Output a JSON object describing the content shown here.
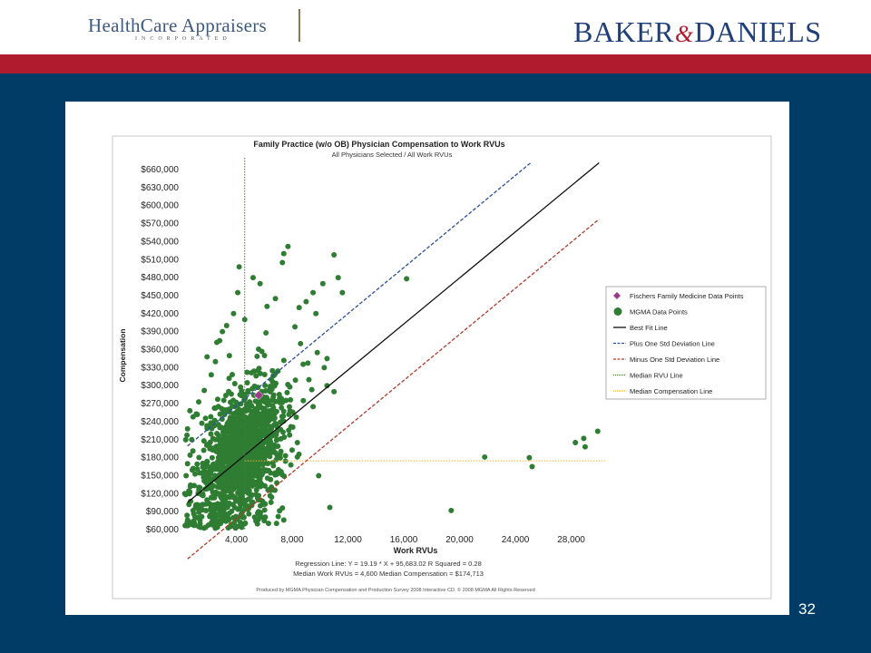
{
  "header": {
    "left_logo": {
      "name": "HealthCare Appraisers",
      "subtitle": "INCORPORATED"
    },
    "right_logo": {
      "part1": "BAKER",
      "ampersand": "&",
      "part2": "DANIELS"
    }
  },
  "slide_number": "32",
  "colors": {
    "background": "#003c66",
    "red_band": "#b01c2e",
    "points": "#2e7d32",
    "highlight": "#9b3b8a",
    "best_fit": "#111111",
    "plus_std": "#2b4fa0",
    "minus_std": "#b23a2a",
    "median_rvu": "#4a7a3a",
    "median_comp": "#f0b030"
  },
  "chart_data": {
    "type": "scatter",
    "title": "Family Practice (w/o OB) Physician Compensation to Work RVUs",
    "subtitle": "All Physicians Selected / All Work RVUs",
    "xlabel": "Work RVUs",
    "ylabel": "Compensation",
    "xlim": [
      0,
      30500
    ],
    "ylim": [
      60000,
      660000
    ],
    "x_ticks": [
      "4,000",
      "8,000",
      "12,000",
      "16,000",
      "20,000",
      "24,000",
      "28,000"
    ],
    "x_tick_values": [
      4000,
      8000,
      12000,
      16000,
      20000,
      24000,
      28000
    ],
    "y_ticks": [
      "$60,000",
      "$90,000",
      "$120,000",
      "$150,000",
      "$180,000",
      "$210,000",
      "$240,000",
      "$270,000",
      "$300,000",
      "$330,000",
      "$360,000",
      "$390,000",
      "$420,000",
      "$450,000",
      "$480,000",
      "$510,000",
      "$540,000",
      "$570,000",
      "$600,000",
      "$630,000",
      "$660,000"
    ],
    "y_tick_values": [
      60000,
      90000,
      120000,
      150000,
      180000,
      210000,
      240000,
      270000,
      300000,
      330000,
      360000,
      390000,
      420000,
      450000,
      480000,
      510000,
      540000,
      570000,
      600000,
      630000,
      660000
    ],
    "legend": [
      {
        "label": "Fischers Family Medicine Data Points",
        "symbol": "diamond",
        "color": "#9b3b8a"
      },
      {
        "label": "MGMA Data Points",
        "symbol": "circle",
        "color": "#2e7d32"
      },
      {
        "label": "Best Fit Line",
        "symbol": "solid",
        "color": "#111111"
      },
      {
        "label": "Plus One Std Deviation Line",
        "symbol": "dashed",
        "color": "#2b4fa0"
      },
      {
        "label": "Minus One Std Deviation Line",
        "symbol": "dashed",
        "color": "#b23a2a"
      },
      {
        "label": "Median RVU Line",
        "symbol": "dotted",
        "color": "#4a7a3a"
      },
      {
        "label": "Median Compensation Line",
        "symbol": "dotted",
        "color": "#f0b030"
      }
    ],
    "legend_position": "right",
    "lines": {
      "regression": {
        "slope": 19.19,
        "intercept": 95683.02
      },
      "std_offset": 94000,
      "median_rvu": 4600,
      "median_compensation": 174713
    },
    "highlight_point": {
      "x": 5600,
      "y": 284000
    },
    "cluster": {
      "x_center": 4300,
      "x_spread": 1500,
      "y_center": 180000,
      "y_spread": 55000,
      "count": 1400,
      "slope": 16
    },
    "series": [
      {
        "name": "MGMA Data Points",
        "points": [
          [
            4200,
            498000
          ],
          [
            5200,
            480000
          ],
          [
            5700,
            470000
          ],
          [
            6800,
            445000
          ],
          [
            7400,
            520000
          ],
          [
            7700,
            532000
          ],
          [
            7300,
            505000
          ],
          [
            6200,
            432000
          ],
          [
            9500,
            455000
          ],
          [
            10200,
            470000
          ],
          [
            11000,
            518000
          ],
          [
            11300,
            480000
          ],
          [
            11600,
            455000
          ],
          [
            9000,
            440000
          ],
          [
            9700,
            420000
          ],
          [
            8500,
            430000
          ],
          [
            8200,
            398000
          ],
          [
            8600,
            370000
          ],
          [
            9800,
            355000
          ],
          [
            10500,
            345000
          ],
          [
            16200,
            478000
          ],
          [
            10500,
            300000
          ],
          [
            11000,
            290000
          ],
          [
            10300,
            330000
          ],
          [
            9200,
            310000
          ],
          [
            8800,
            275000
          ],
          [
            9500,
            265000
          ],
          [
            9900,
            150000
          ],
          [
            10700,
            97000
          ],
          [
            19400,
            92000
          ],
          [
            21800,
            181000
          ],
          [
            25000,
            180000
          ],
          [
            25200,
            165000
          ],
          [
            28300,
            205000
          ],
          [
            28900,
            212000
          ],
          [
            29000,
            198000
          ],
          [
            29900,
            224000
          ],
          [
            800,
            210000
          ],
          [
            500,
            228000
          ],
          [
            900,
            248000
          ],
          [
            1200,
            252000
          ],
          [
            1300,
            273000
          ],
          [
            1700,
            292000
          ],
          [
            2200,
            318000
          ],
          [
            2500,
            340000
          ],
          [
            1900,
            348000
          ],
          [
            2800,
            375000
          ],
          [
            2600,
            372000
          ],
          [
            3000,
            390000
          ],
          [
            3300,
            400000
          ],
          [
            3800,
            420000
          ],
          [
            4600,
            410000
          ],
          [
            4100,
            455000
          ],
          [
            3500,
            350000
          ],
          [
            6900,
            138000
          ],
          [
            7300,
            96000
          ],
          [
            7400,
            76000
          ],
          [
            7000,
            82000
          ],
          [
            6000,
            75000
          ],
          [
            5600,
            88000
          ],
          [
            500,
            170000
          ],
          [
            400,
            150000
          ],
          [
            300,
            120000
          ],
          [
            700,
            132000
          ],
          [
            600,
            102000
          ],
          [
            900,
            92000
          ],
          [
            1100,
            80000
          ],
          [
            1400,
            70000
          ],
          [
            1800,
            64000
          ],
          [
            2300,
            68000
          ]
        ]
      }
    ],
    "annotations": [
      "Regression Line: Y = 19.19 * X + 95,683.02   R Squared = 0.28",
      "Median Work RVUs = 4,600   Median Compensation = $174,713",
      "Produced by MGMA Physician Compensation and Production Survey 2008 Interactive CD. © 2008 MGMA All Rights Reserved"
    ]
  }
}
